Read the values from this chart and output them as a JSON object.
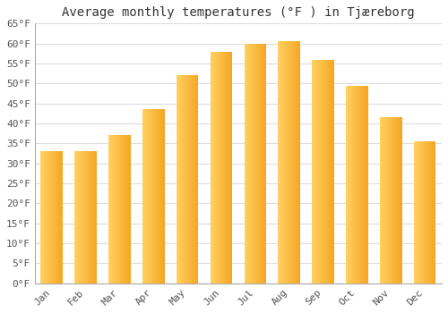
{
  "title": "Average monthly temperatures (°F ) in Tjæreborg",
  "categories": [
    "Jan",
    "Feb",
    "Mar",
    "Apr",
    "May",
    "Jun",
    "Jul",
    "Aug",
    "Sep",
    "Oct",
    "Nov",
    "Dec"
  ],
  "values": [
    33,
    33,
    37,
    43.5,
    52,
    58,
    60,
    60.5,
    56,
    49.5,
    41.5,
    35.5
  ],
  "bar_color_left": "#FFD060",
  "bar_color_right": "#F5A623",
  "ylim": [
    0,
    65
  ],
  "yticks": [
    0,
    5,
    10,
    15,
    20,
    25,
    30,
    35,
    40,
    45,
    50,
    55,
    60,
    65
  ],
  "ytick_labels": [
    "0°F",
    "5°F",
    "10°F",
    "15°F",
    "20°F",
    "25°F",
    "30°F",
    "35°F",
    "40°F",
    "45°F",
    "50°F",
    "55°F",
    "60°F",
    "65°F"
  ],
  "background_color": "#ffffff",
  "grid_color": "#dddddd",
  "title_fontsize": 10,
  "tick_fontsize": 8,
  "bar_width": 0.65,
  "n_gradient_steps": 50
}
